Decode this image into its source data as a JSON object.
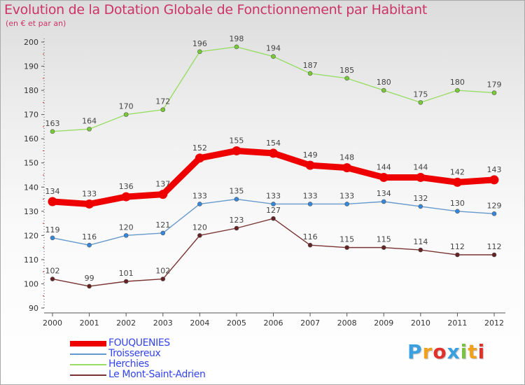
{
  "header": {
    "title": "Evolution de la Dotation Globale de Fonctionnement par Habitant",
    "subtitle": "(en € et par an)"
  },
  "logo": {
    "text": "Proxiti",
    "letters": [
      "P",
      "r",
      "o",
      "x",
      "i",
      "t",
      "i"
    ],
    "colors": [
      "#3aa0e0",
      "#f2a11c",
      "#e0312b",
      "#3aa0e0",
      "#7bc143",
      "#f2a11c",
      "#e0312b"
    ]
  },
  "colors": {
    "title": "#cc3366",
    "axis": "#555555",
    "tick_label": "#333333",
    "data_label": "#444444"
  },
  "chart_data": {
    "type": "line",
    "title": "Evolution de la Dotation Globale de Fonctionnement par Habitant",
    "subtitle": "(en € et par an)",
    "xlabel": "",
    "ylabel": "",
    "categories": [
      "2000",
      "2001",
      "2002",
      "2003",
      "2004",
      "2005",
      "2006",
      "2007",
      "2008",
      "2009",
      "2010",
      "2011",
      "2012"
    ],
    "ylim": [
      90,
      200
    ],
    "yticks": [
      90,
      100,
      110,
      120,
      130,
      140,
      150,
      160,
      170,
      180,
      190,
      200
    ],
    "grid": false,
    "legend_position": "bottom-left",
    "series": [
      {
        "name": "Herchies",
        "color": "#99dd66",
        "marker_color": "#77cc33",
        "weight": "thin",
        "values": [
          163,
          164,
          170,
          172,
          196,
          198,
          194,
          187,
          185,
          180,
          175,
          180,
          179
        ]
      },
      {
        "name": "Troissereux",
        "color": "#6699cc",
        "marker_color": "#3388dd",
        "weight": "thin",
        "values": [
          119,
          116,
          120,
          121,
          133,
          135,
          133,
          133,
          133,
          134,
          132,
          130,
          129
        ]
      },
      {
        "name": "Le Mont-Saint-Adrien",
        "color": "#7a3333",
        "marker_color": "#662222",
        "weight": "thin",
        "values": [
          102,
          99,
          101,
          102,
          120,
          123,
          127,
          116,
          115,
          115,
          114,
          112,
          112
        ]
      },
      {
        "name": "FOUQUENIES",
        "color": "#ee0000",
        "marker_color": "#ee0000",
        "weight": "thick",
        "values": [
          134,
          133,
          136,
          137,
          152,
          155,
          154,
          149,
          148,
          144,
          144,
          142,
          143
        ]
      }
    ],
    "legend_order": [
      "FOUQUENIES",
      "Troissereux",
      "Herchies",
      "Le Mont-Saint-Adrien"
    ],
    "legend_label_colors": {
      "FOUQUENIES": "#3344ee",
      "Troissereux": "#3344ee",
      "Herchies": "#3344ee",
      "Le Mont-Saint-Adrien": "#3344ee"
    }
  }
}
